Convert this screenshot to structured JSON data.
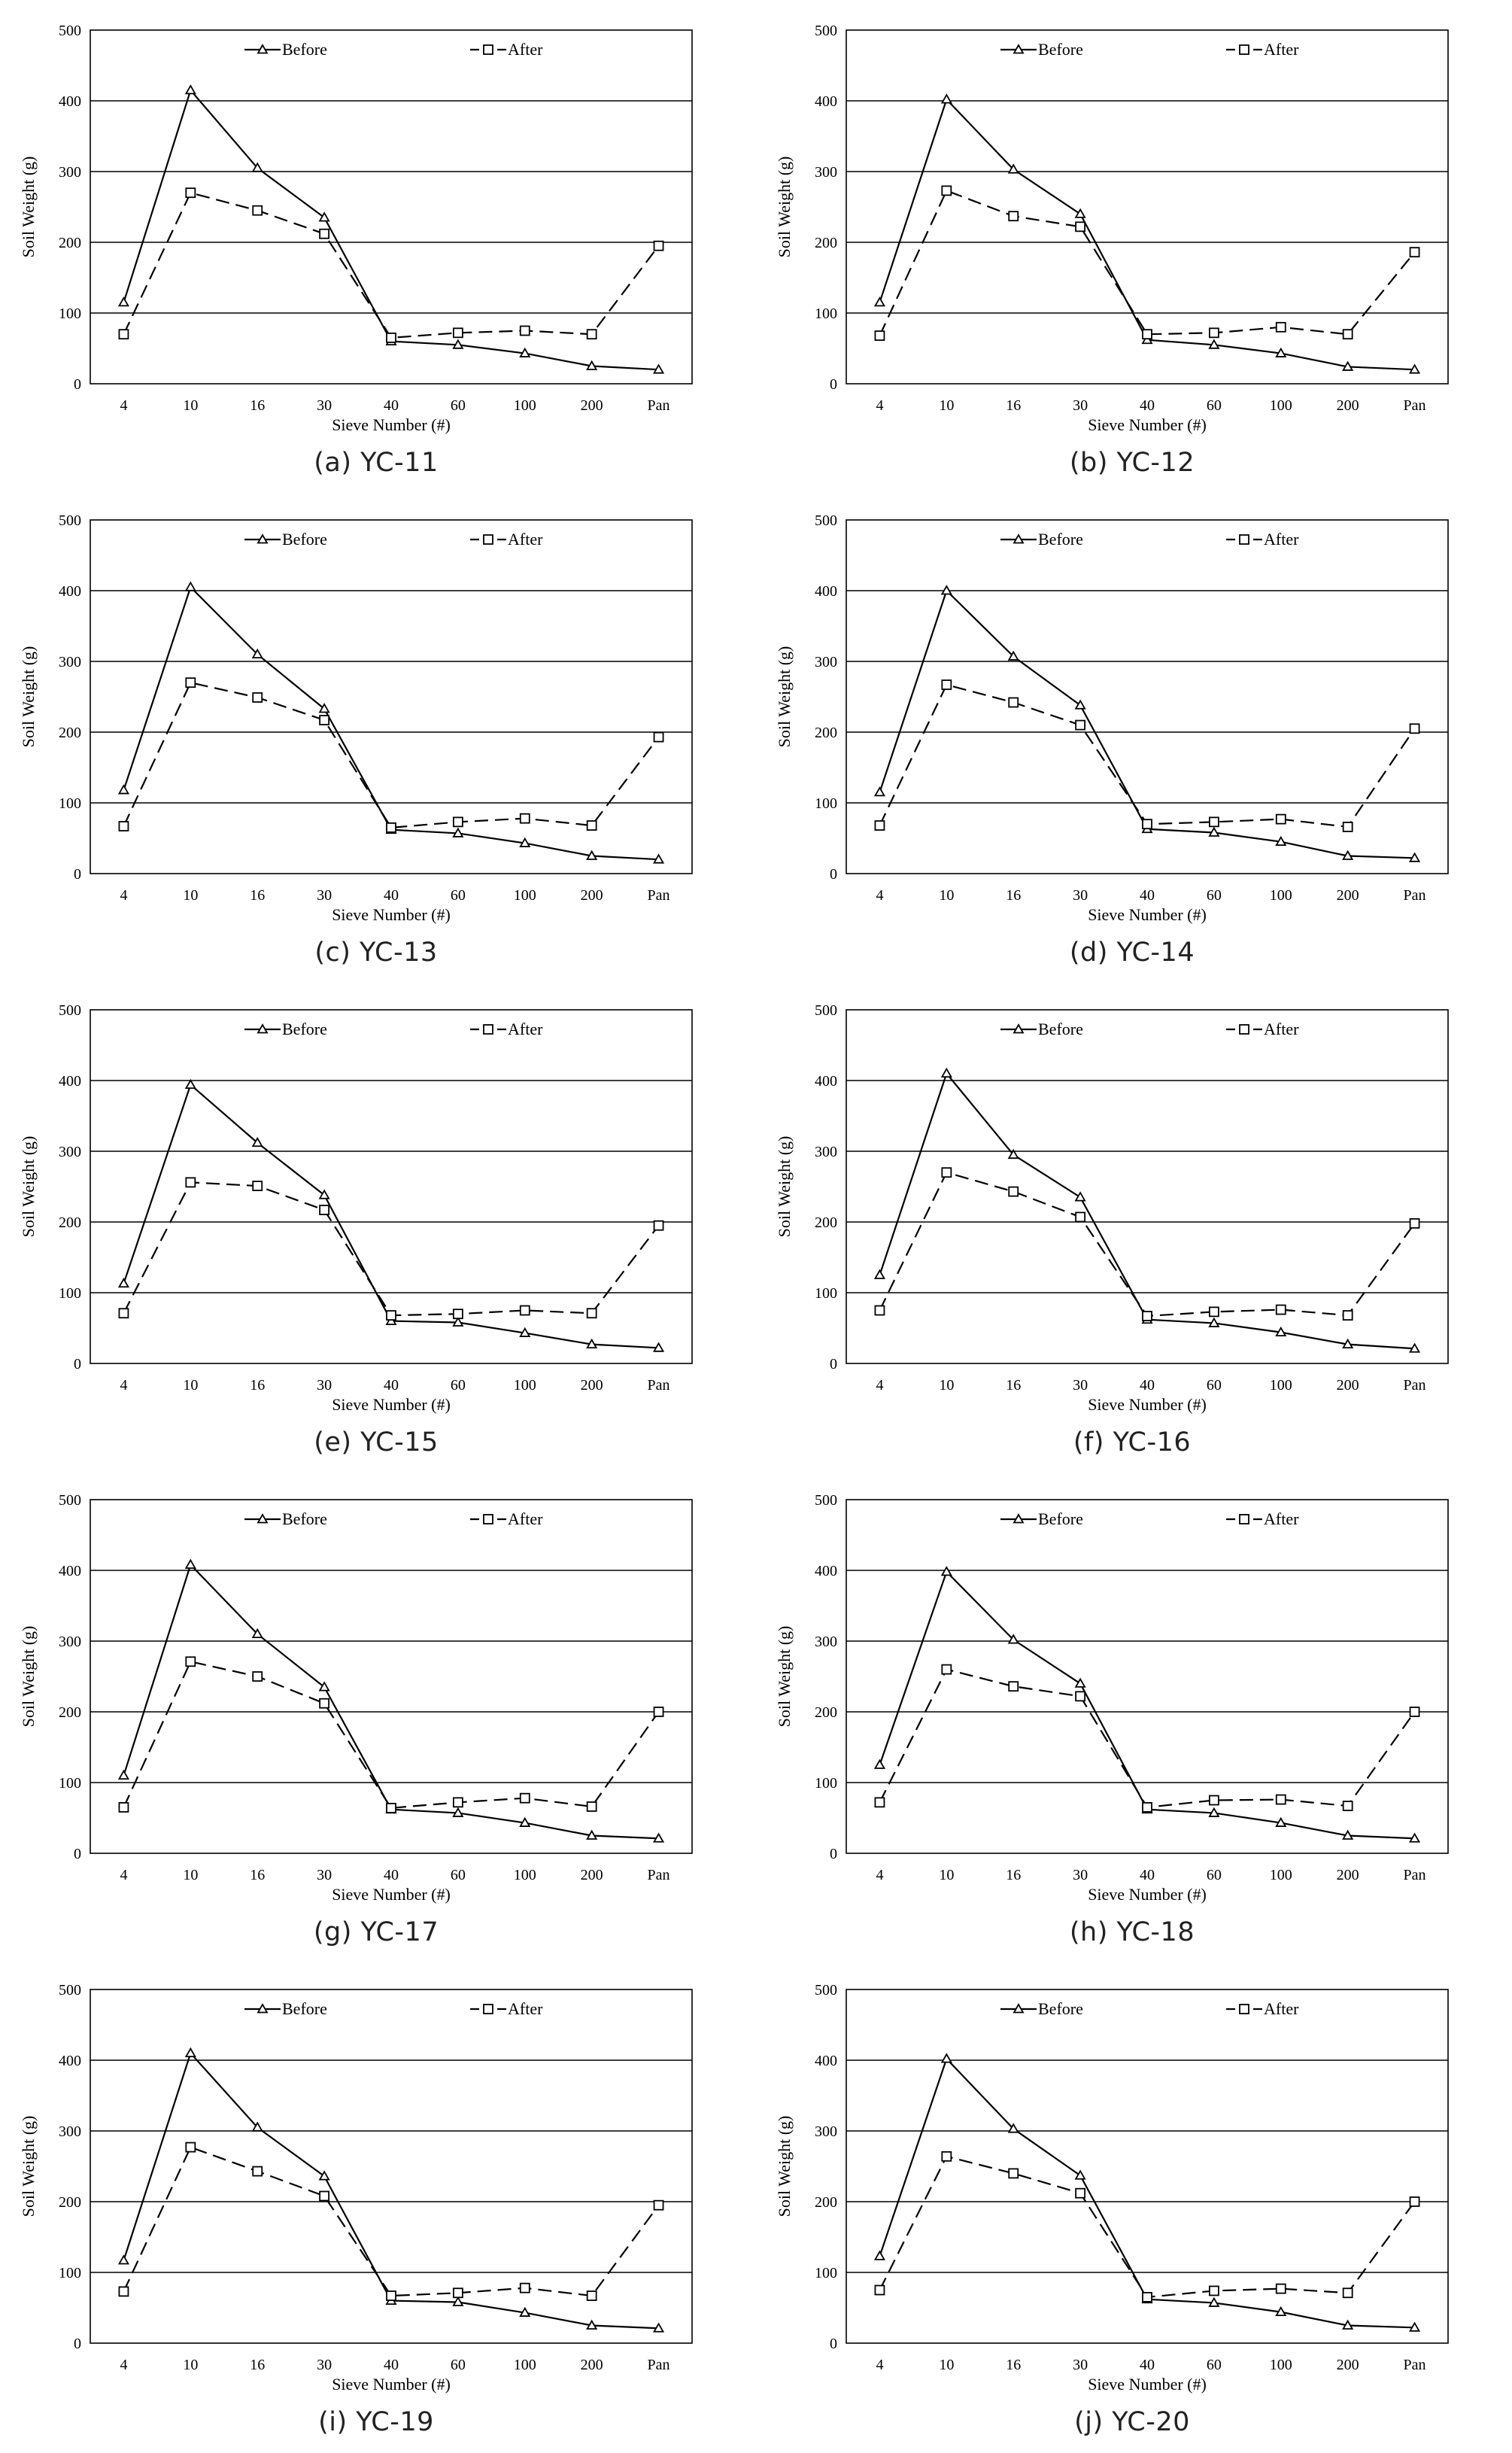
{
  "chart_data": [
    {
      "type": "line",
      "caption": "(a) YC-11",
      "categories": [
        "4",
        "10",
        "16",
        "30",
        "40",
        "60",
        "100",
        "200",
        "Pan"
      ],
      "xlabel": "Sieve Number (#)",
      "ylabel": "Soil Weight (g)",
      "ylim": [
        0,
        500
      ],
      "yticks": [
        "0",
        "100",
        "200",
        "300",
        "400",
        "500"
      ],
      "grid": "horizontal",
      "legend": "top",
      "series": [
        {
          "name": "Before",
          "marker": "triangle",
          "dash": "solid",
          "values": [
            115,
            415,
            305,
            235,
            60,
            55,
            43,
            25,
            20
          ]
        },
        {
          "name": "After",
          "marker": "square",
          "dash": "dashed",
          "values": [
            70,
            270,
            245,
            212,
            65,
            72,
            75,
            70,
            195
          ]
        }
      ]
    },
    {
      "type": "line",
      "caption": "(b) YC-12",
      "categories": [
        "4",
        "10",
        "16",
        "30",
        "40",
        "60",
        "100",
        "200",
        "Pan"
      ],
      "xlabel": "Sieve Number (#)",
      "ylabel": "Soil Weight (g)",
      "ylim": [
        0,
        500
      ],
      "yticks": [
        "0",
        "100",
        "200",
        "300",
        "400",
        "500"
      ],
      "grid": "horizontal",
      "legend": "top",
      "series": [
        {
          "name": "Before",
          "marker": "triangle",
          "dash": "solid",
          "values": [
            115,
            402,
            303,
            240,
            62,
            55,
            43,
            24,
            20
          ]
        },
        {
          "name": "After",
          "marker": "square",
          "dash": "dashed",
          "values": [
            68,
            273,
            237,
            222,
            70,
            72,
            80,
            70,
            186
          ]
        }
      ]
    },
    {
      "type": "line",
      "caption": "(c) YC-13",
      "categories": [
        "4",
        "10",
        "16",
        "30",
        "40",
        "60",
        "100",
        "200",
        "Pan"
      ],
      "xlabel": "Sieve Number (#)",
      "ylabel": "Soil Weight (g)",
      "ylim": [
        0,
        500
      ],
      "yticks": [
        "0",
        "100",
        "200",
        "300",
        "400",
        "500"
      ],
      "grid": "horizontal",
      "legend": "top",
      "series": [
        {
          "name": "Before",
          "marker": "triangle",
          "dash": "solid",
          "values": [
            118,
            405,
            310,
            233,
            62,
            57,
            43,
            25,
            20
          ]
        },
        {
          "name": "After",
          "marker": "square",
          "dash": "dashed",
          "values": [
            67,
            270,
            249,
            217,
            65,
            73,
            78,
            68,
            193
          ]
        }
      ]
    },
    {
      "type": "line",
      "caption": "(d) YC-14",
      "categories": [
        "4",
        "10",
        "16",
        "30",
        "40",
        "60",
        "100",
        "200",
        "Pan"
      ],
      "xlabel": "Sieve Number (#)",
      "ylabel": "Soil Weight (g)",
      "ylim": [
        0,
        500
      ],
      "yticks": [
        "0",
        "100",
        "200",
        "300",
        "400",
        "500"
      ],
      "grid": "horizontal",
      "legend": "top",
      "series": [
        {
          "name": "Before",
          "marker": "triangle",
          "dash": "solid",
          "values": [
            115,
            400,
            307,
            238,
            63,
            58,
            45,
            25,
            22
          ]
        },
        {
          "name": "After",
          "marker": "square",
          "dash": "dashed",
          "values": [
            68,
            267,
            242,
            210,
            70,
            73,
            77,
            66,
            205
          ]
        }
      ]
    },
    {
      "type": "line",
      "caption": "(e) YC-15",
      "categories": [
        "4",
        "10",
        "16",
        "30",
        "40",
        "60",
        "100",
        "200",
        "Pan"
      ],
      "xlabel": "Sieve Number (#)",
      "ylabel": "Soil Weight (g)",
      "ylim": [
        0,
        500
      ],
      "yticks": [
        "0",
        "100",
        "200",
        "300",
        "400",
        "500"
      ],
      "grid": "horizontal",
      "legend": "top",
      "series": [
        {
          "name": "Before",
          "marker": "triangle",
          "dash": "solid",
          "values": [
            113,
            394,
            312,
            238,
            60,
            58,
            43,
            27,
            22
          ]
        },
        {
          "name": "After",
          "marker": "square",
          "dash": "dashed",
          "values": [
            71,
            256,
            251,
            217,
            68,
            70,
            75,
            71,
            195
          ]
        }
      ]
    },
    {
      "type": "line",
      "caption": "(f) YC-16",
      "categories": [
        "4",
        "10",
        "16",
        "30",
        "40",
        "60",
        "100",
        "200",
        "Pan"
      ],
      "xlabel": "Sieve Number (#)",
      "ylabel": "Soil Weight (g)",
      "ylim": [
        0,
        500
      ],
      "yticks": [
        "0",
        "100",
        "200",
        "300",
        "400",
        "500"
      ],
      "grid": "horizontal",
      "legend": "top",
      "series": [
        {
          "name": "Before",
          "marker": "triangle",
          "dash": "solid",
          "values": [
            125,
            410,
            295,
            235,
            62,
            57,
            44,
            27,
            21
          ]
        },
        {
          "name": "After",
          "marker": "square",
          "dash": "dashed",
          "values": [
            75,
            270,
            243,
            207,
            67,
            73,
            76,
            68,
            198
          ]
        }
      ]
    },
    {
      "type": "line",
      "caption": "(g) YC-17",
      "categories": [
        "4",
        "10",
        "16",
        "30",
        "40",
        "60",
        "100",
        "200",
        "Pan"
      ],
      "xlabel": "Sieve Number (#)",
      "ylabel": "Soil Weight (g)",
      "ylim": [
        0,
        500
      ],
      "yticks": [
        "0",
        "100",
        "200",
        "300",
        "400",
        "500"
      ],
      "grid": "horizontal",
      "legend": "top",
      "series": [
        {
          "name": "Before",
          "marker": "triangle",
          "dash": "solid",
          "values": [
            110,
            408,
            310,
            235,
            62,
            57,
            43,
            25,
            21
          ]
        },
        {
          "name": "After",
          "marker": "square",
          "dash": "dashed",
          "values": [
            65,
            271,
            250,
            212,
            64,
            72,
            78,
            66,
            200
          ]
        }
      ]
    },
    {
      "type": "line",
      "caption": "(h) YC-18",
      "categories": [
        "4",
        "10",
        "16",
        "30",
        "40",
        "60",
        "100",
        "200",
        "Pan"
      ],
      "xlabel": "Sieve Number (#)",
      "ylabel": "Soil Weight (g)",
      "ylim": [
        0,
        500
      ],
      "yticks": [
        "0",
        "100",
        "200",
        "300",
        "400",
        "500"
      ],
      "grid": "horizontal",
      "legend": "top",
      "series": [
        {
          "name": "Before",
          "marker": "triangle",
          "dash": "solid",
          "values": [
            125,
            398,
            302,
            240,
            62,
            57,
            43,
            25,
            21
          ]
        },
        {
          "name": "After",
          "marker": "square",
          "dash": "dashed",
          "values": [
            72,
            260,
            236,
            222,
            65,
            75,
            76,
            67,
            200
          ]
        }
      ]
    },
    {
      "type": "line",
      "caption": "(i) YC-19",
      "categories": [
        "4",
        "10",
        "16",
        "30",
        "40",
        "60",
        "100",
        "200",
        "Pan"
      ],
      "xlabel": "Sieve Number (#)",
      "ylabel": "Soil Weight (g)",
      "ylim": [
        0,
        500
      ],
      "yticks": [
        "0",
        "100",
        "200",
        "300",
        "400",
        "500"
      ],
      "grid": "horizontal",
      "legend": "top",
      "series": [
        {
          "name": "Before",
          "marker": "triangle",
          "dash": "solid",
          "values": [
            117,
            410,
            305,
            236,
            60,
            58,
            43,
            25,
            21
          ]
        },
        {
          "name": "After",
          "marker": "square",
          "dash": "dashed",
          "values": [
            73,
            277,
            243,
            208,
            67,
            71,
            78,
            67,
            195
          ]
        }
      ]
    },
    {
      "type": "line",
      "caption": "(j) YC-20",
      "categories": [
        "4",
        "10",
        "16",
        "30",
        "40",
        "60",
        "100",
        "200",
        "Pan"
      ],
      "xlabel": "Sieve Number (#)",
      "ylabel": "Soil Weight (g)",
      "ylim": [
        0,
        500
      ],
      "yticks": [
        "0",
        "100",
        "200",
        "300",
        "400",
        "500"
      ],
      "grid": "horizontal",
      "legend": "top",
      "series": [
        {
          "name": "Before",
          "marker": "triangle",
          "dash": "solid",
          "values": [
            123,
            402,
            303,
            237,
            62,
            57,
            44,
            25,
            22
          ]
        },
        {
          "name": "After",
          "marker": "square",
          "dash": "dashed",
          "values": [
            75,
            264,
            240,
            212,
            65,
            74,
            77,
            71,
            200
          ]
        }
      ]
    }
  ]
}
